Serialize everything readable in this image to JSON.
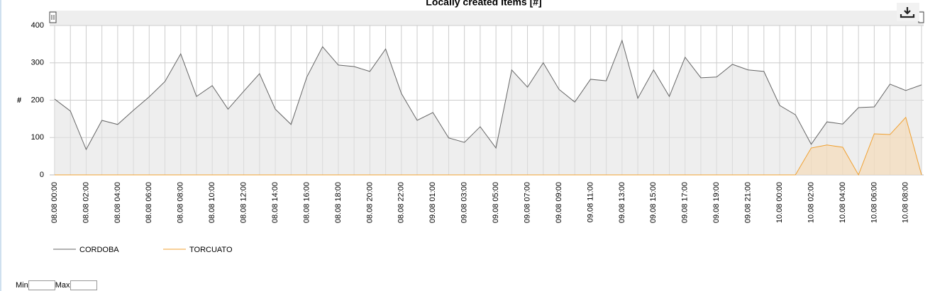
{
  "chart_data": {
    "type": "line",
    "title": "Locally created Items [#]",
    "y_label": "#",
    "categories": [
      "08.08 00:00",
      null,
      "08.08 02:00",
      null,
      "08.08 04:00",
      null,
      "08.08 06:00",
      null,
      "08.08 08:00",
      null,
      "08.08 10:00",
      null,
      "08.08 12:00",
      null,
      "08.08 14:00",
      null,
      "08.08 16:00",
      null,
      "08.08 18:00",
      null,
      "08.08 20:00",
      null,
      "08.08 22:00",
      null,
      "09.08 01:00",
      null,
      "09.08 03:00",
      null,
      "09.08 05:00",
      null,
      "09.08 07:00",
      null,
      "09.08 09:00",
      null,
      "09.08 11:00",
      null,
      "09.08 13:00",
      null,
      "09.08 15:00",
      null,
      "09.08 17:00",
      null,
      "09.08 19:00",
      null,
      "09.08 21:00",
      null,
      "10.08 00:00",
      null,
      "10.08 02:00",
      null,
      "10.08 04:00",
      null,
      "10.08 06:00",
      null,
      "10.08 08:00",
      null
    ],
    "series": [
      {
        "name": "CORDOBA",
        "color": "#666666",
        "fill": "#e2e2e2",
        "values": [
          203,
          171,
          68,
          146,
          135,
          173,
          209,
          250,
          324,
          210,
          239,
          176,
          224,
          271,
          176,
          135,
          262,
          343,
          294,
          290,
          277,
          337,
          218,
          146,
          167,
          99,
          87,
          129,
          72,
          281,
          235,
          300,
          229,
          195,
          256,
          252,
          360,
          205,
          281,
          210,
          315,
          260,
          262,
          296,
          281,
          277,
          186,
          161,
          82,
          142,
          136,
          180,
          182,
          243,
          226,
          241
        ]
      },
      {
        "name": "TORCUATO",
        "color": "#f0a030",
        "fill": "#f6d9b0",
        "values": [
          0,
          0,
          0,
          0,
          0,
          0,
          0,
          0,
          0,
          0,
          0,
          0,
          0,
          0,
          0,
          0,
          0,
          0,
          0,
          0,
          0,
          0,
          0,
          0,
          0,
          0,
          0,
          0,
          0,
          0,
          0,
          0,
          0,
          0,
          0,
          0,
          0,
          0,
          0,
          0,
          0,
          0,
          0,
          0,
          0,
          0,
          0,
          0,
          72,
          80,
          74,
          0,
          110,
          108,
          154,
          0
        ]
      }
    ],
    "ylim": [
      0,
      400
    ],
    "yticks": [
      0,
      100,
      200,
      300,
      400
    ],
    "grid": true
  },
  "controls": {
    "min_label": "Min",
    "max_label": "Max"
  }
}
